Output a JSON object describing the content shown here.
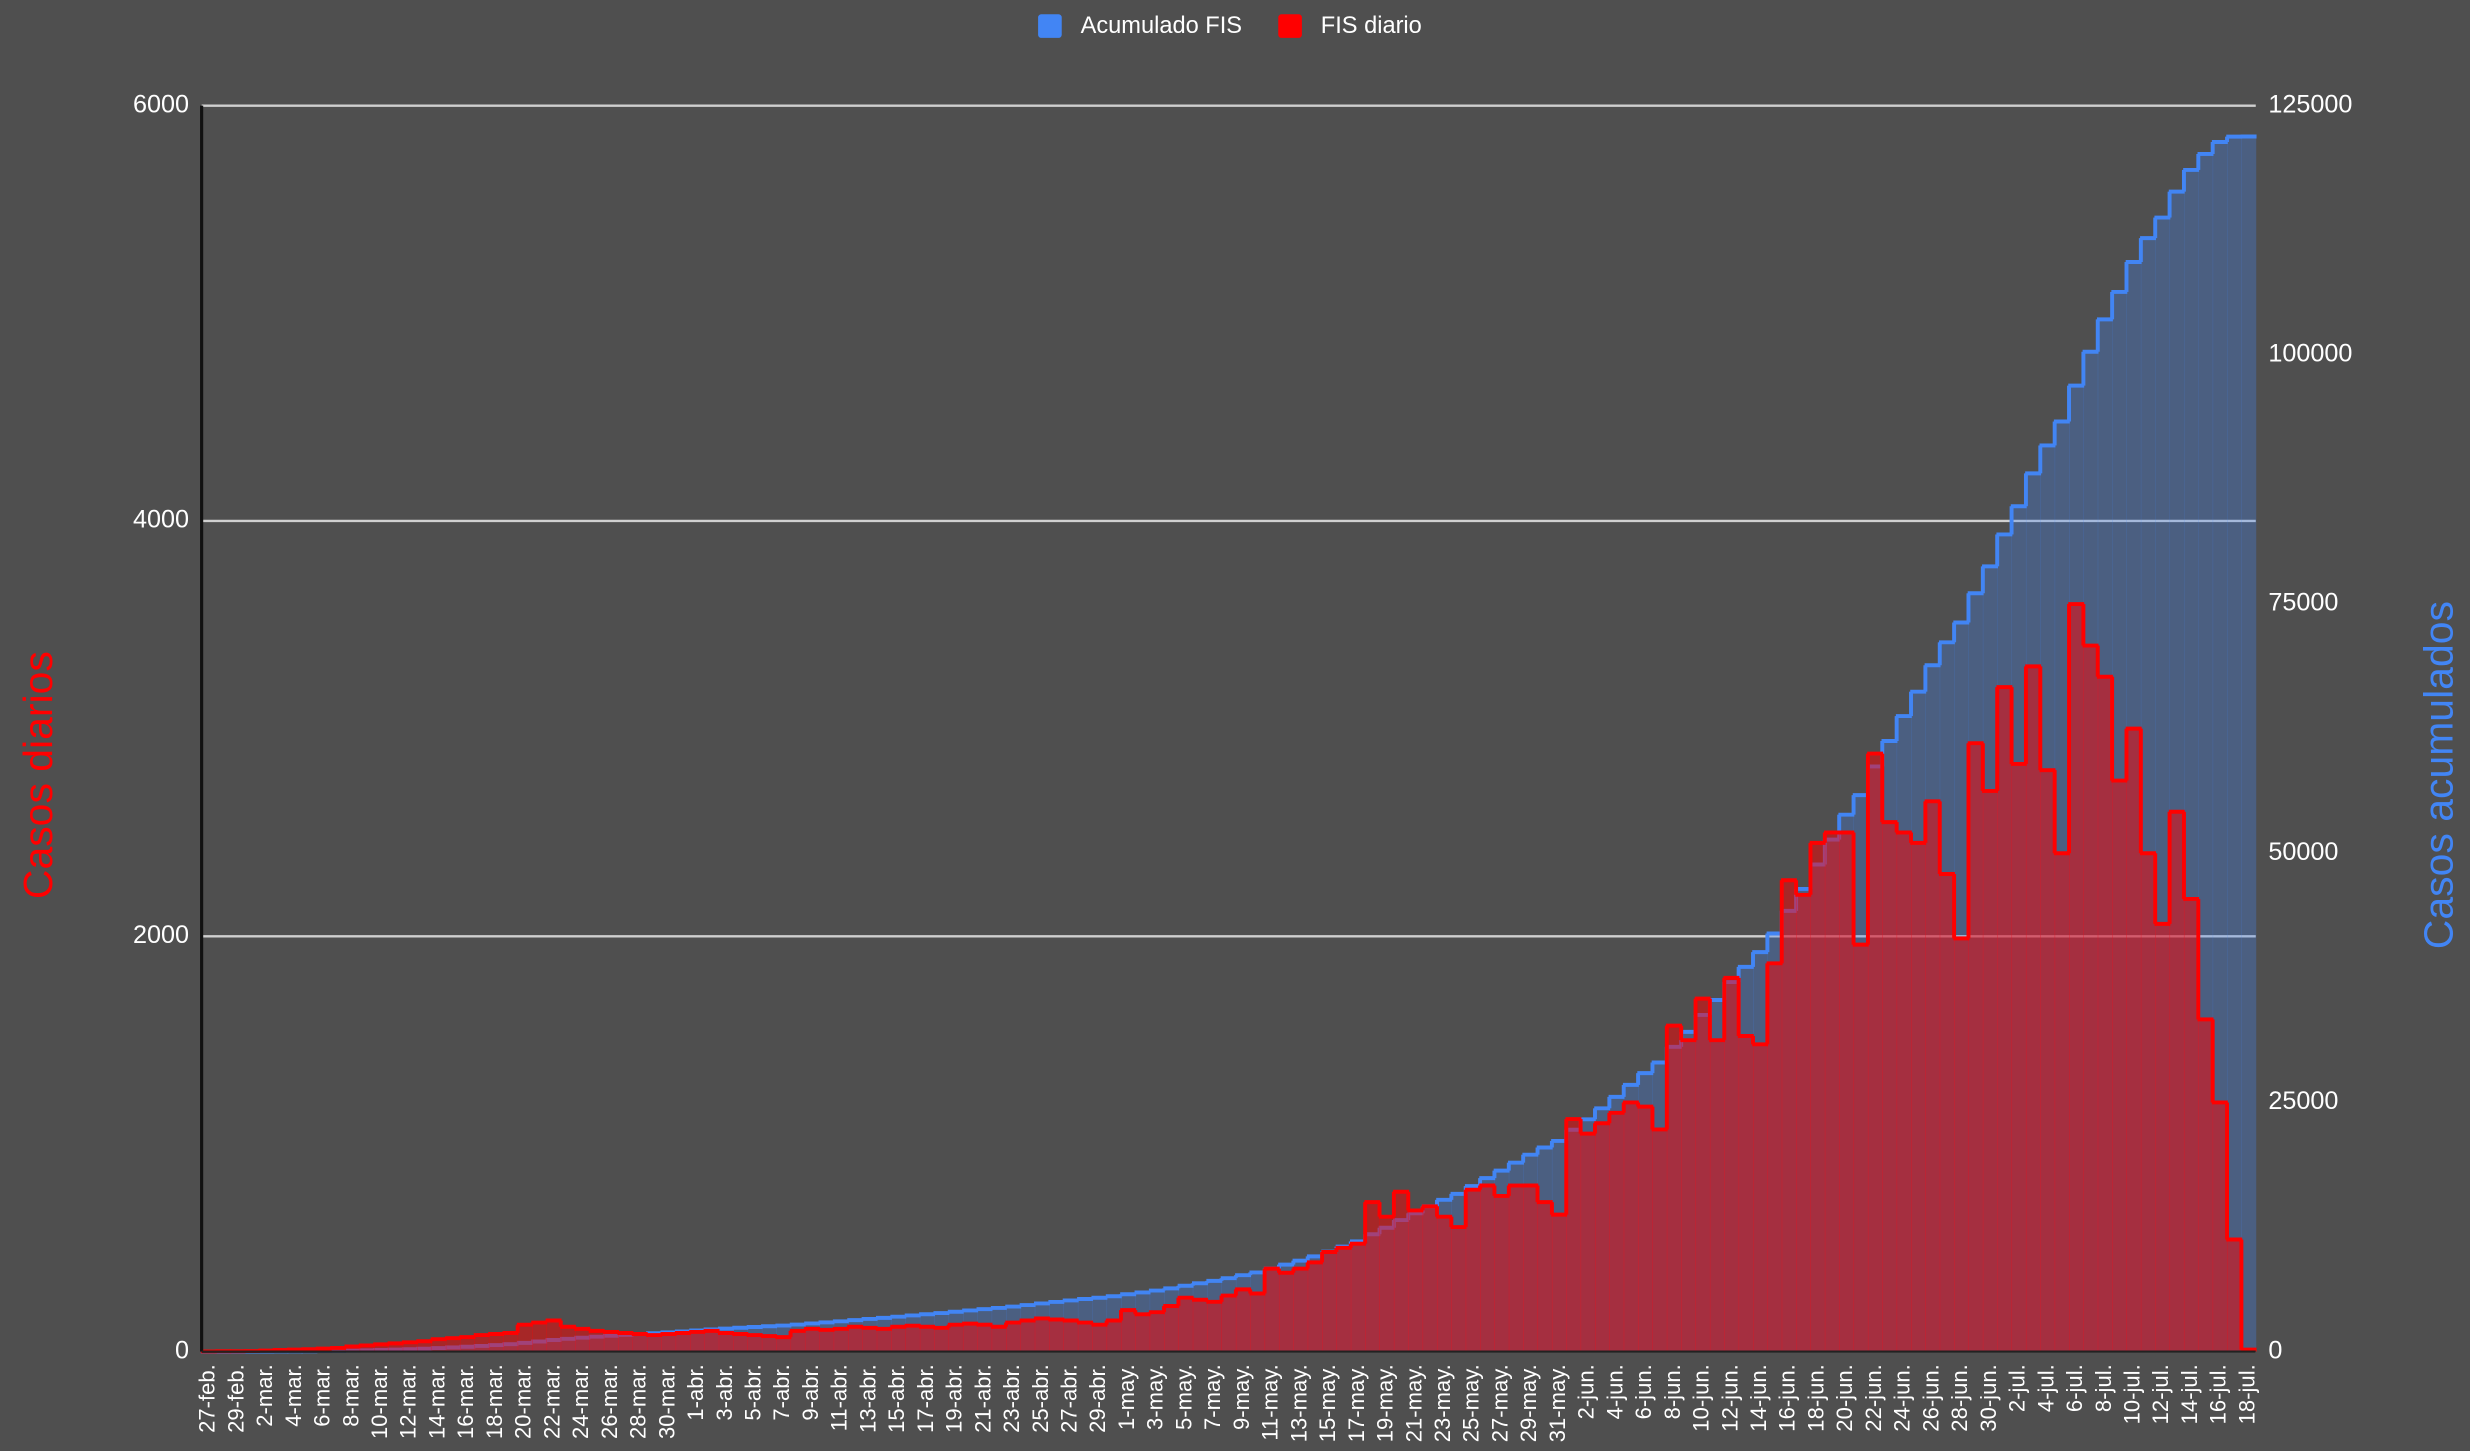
{
  "chart_data": {
    "type": "stepped-area",
    "legend": "top",
    "grid": true,
    "y_axis_label": "Casos diarios",
    "y2_axis_label": "Casos acumulados",
    "categories": [
      "27-feb.",
      null,
      "29-feb.",
      null,
      "2-mar.",
      null,
      "4-mar.",
      null,
      "6-mar.",
      null,
      "8-mar.",
      null,
      "10-mar.",
      null,
      "12-mar.",
      null,
      "14-mar.",
      null,
      "16-mar.",
      null,
      "18-mar.",
      null,
      "20-mar.",
      null,
      "22-mar.",
      null,
      "24-mar.",
      null,
      "26-mar.",
      null,
      "28-mar.",
      null,
      "30-mar.",
      null,
      "1-abr.",
      null,
      "3-abr.",
      null,
      "5-abr.",
      null,
      "7-abr.",
      null,
      "9-abr.",
      null,
      "11-abr.",
      null,
      "13-abr.",
      null,
      "15-abr.",
      null,
      "17-abr.",
      null,
      "19-abr.",
      null,
      "21-abr.",
      null,
      "23-abr.",
      null,
      "25-abr.",
      null,
      "27-abr.",
      null,
      "29-abr.",
      null,
      "1-may.",
      null,
      "3-may.",
      null,
      "5-may.",
      null,
      "7-may.",
      null,
      "9-may.",
      null,
      "11-may.",
      null,
      "13-may.",
      null,
      "15-may.",
      null,
      "17-may.",
      null,
      "19-may.",
      null,
      "21-may.",
      null,
      "23-may.",
      null,
      "25-may.",
      null,
      "27-may.",
      null,
      "29-may.",
      null,
      "31-may.",
      null,
      "2-jun.",
      null,
      "4-jun.",
      null,
      "6-jun.",
      null,
      "8-jun.",
      null,
      "10-jun.",
      null,
      "12-jun.",
      null,
      "14-jun.",
      null,
      "16-jun.",
      null,
      "18-jun.",
      null,
      "20-jun.",
      null,
      "22-jun.",
      null,
      "24-jun.",
      null,
      "26-jun.",
      null,
      "28-jun.",
      null,
      "30-jun.",
      null,
      "2-jul.",
      null,
      "4-jul.",
      null,
      "6-jul.",
      null,
      "8-jul.",
      null,
      "10-jul.",
      null,
      "12-jul.",
      null,
      "14-jul.",
      null,
      "16-jul.",
      null,
      "18-jul."
    ],
    "series": [
      {
        "name": "Acumulado FIS",
        "color": "#4285f4",
        "axis": "y2",
        "values": [
          1,
          3,
          5,
          8,
          13,
          21,
          31,
          43,
          58,
          76,
          101,
          131,
          166,
          206,
          251,
          301,
          361,
          426,
          496,
          576,
          661,
          751,
          881,
          1021,
          1171,
          1291,
          1401,
          1501,
          1596,
          1686,
          1771,
          1851,
          1936,
          2026,
          2121,
          2221,
          2311,
          2396,
          2476,
          2551,
          2621,
          2721,
          2831,
          2936,
          3046,
          3166,
          3281,
          3391,
          3511,
          3636,
          3756,
          3871,
          4001,
          4136,
          4266,
          4386,
          4526,
          4676,
          4836,
          4991,
          5141,
          5281,
          5411,
          5561,
          5761,
          5941,
          6131,
          6351,
          6611,
          6861,
          7101,
          7371,
          7671,
          7951,
          8351,
          8731,
          9131,
          9561,
          10041,
          10541,
          11061,
          11781,
          12431,
          13201,
          13881,
          14581,
          15231,
          15831,
          16611,
          17411,
          18161,
          18961,
          19761,
          20481,
          21141,
          22261,
          23311,
          24411,
          25561,
          26761,
          27941,
          29011,
          30581,
          32081,
          33781,
          35281,
          37081,
          38601,
          40081,
          41951,
          44221,
          46421,
          48871,
          51371,
          53871,
          55831,
          58711,
          61261,
          63761,
          66211,
          68861,
          71161,
          73151,
          76081,
          78781,
          81981,
          84811,
          88111,
          90911,
          93311,
          96911,
          100311,
          103561,
          106311,
          109311,
          111711,
          113771,
          116371,
          118551,
          120151,
          121351,
          121891,
          121901
        ]
      },
      {
        "name": "FIS diario",
        "color": "#ff0000",
        "values": [
          1,
          2,
          2,
          3,
          5,
          8,
          10,
          12,
          15,
          18,
          25,
          30,
          35,
          40,
          45,
          50,
          60,
          65,
          70,
          80,
          85,
          90,
          130,
          140,
          150,
          120,
          110,
          100,
          95,
          90,
          85,
          80,
          85,
          90,
          95,
          100,
          90,
          85,
          80,
          75,
          70,
          100,
          110,
          105,
          110,
          120,
          115,
          110,
          120,
          125,
          120,
          115,
          130,
          135,
          130,
          120,
          140,
          150,
          160,
          155,
          150,
          140,
          130,
          150,
          200,
          180,
          190,
          220,
          260,
          250,
          240,
          270,
          300,
          280,
          400,
          380,
          400,
          430,
          480,
          500,
          520,
          720,
          650,
          770,
          680,
          700,
          650,
          600,
          780,
          800,
          750,
          800,
          800,
          720,
          660,
          1120,
          1050,
          1100,
          1150,
          1200,
          1180,
          1070,
          1570,
          1500,
          1700,
          1500,
          1800,
          1520,
          1480,
          1870,
          2270,
          2200,
          2450,
          2500,
          2500,
          1960,
          2880,
          2550,
          2500,
          2450,
          2650,
          2300,
          1990,
          2930,
          2700,
          3200,
          2830,
          3300,
          2800,
          2400,
          3600,
          3400,
          3250,
          2750,
          3000,
          2400,
          2060,
          2600,
          2180,
          1600,
          1200,
          540,
          10
        ]
      }
    ],
    "ylim": [
      0,
      6000
    ],
    "yticks": [
      0,
      2000,
      4000,
      6000
    ],
    "y2lim": [
      0,
      125000
    ],
    "y2ticks": [
      0,
      25000,
      50000,
      75000,
      100000,
      125000
    ]
  }
}
